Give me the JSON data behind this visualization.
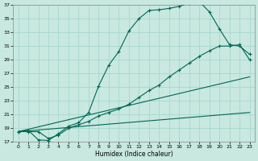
{
  "xlabel": "Humidex (Indice chaleur)",
  "bg_color": "#c8e8e0",
  "line_color": "#006655",
  "grid_color": "#a8d8cc",
  "xlim": [
    -0.5,
    23.5
  ],
  "ylim": [
    17,
    37
  ],
  "yticks": [
    17,
    19,
    21,
    23,
    25,
    27,
    29,
    31,
    33,
    35,
    37
  ],
  "xticks": [
    0,
    1,
    2,
    3,
    4,
    5,
    6,
    7,
    8,
    9,
    10,
    11,
    12,
    13,
    14,
    15,
    16,
    17,
    18,
    19,
    20,
    21,
    22,
    23
  ],
  "curve1_x": [
    0,
    1,
    2,
    3,
    4,
    5,
    6,
    7,
    8,
    9,
    10,
    11,
    12,
    13,
    14,
    15,
    16,
    17,
    18,
    19,
    20,
    21,
    22,
    23
  ],
  "curve1_y": [
    18.5,
    18.7,
    17.3,
    17.2,
    18.2,
    19.3,
    19.8,
    21.3,
    25.2,
    28.2,
    30.2,
    33.2,
    35.0,
    36.2,
    36.3,
    36.5,
    36.8,
    37.3,
    37.5,
    36.0,
    33.5,
    31.2,
    31.0,
    29.8
  ],
  "curve2_x": [
    0,
    1,
    2,
    3,
    4,
    5,
    6,
    7,
    8,
    9,
    10,
    11,
    12,
    13,
    14,
    15,
    16,
    17,
    18,
    19,
    20,
    21,
    22,
    23
  ],
  "curve2_y": [
    18.5,
    18.5,
    18.5,
    17.5,
    18.0,
    19.0,
    19.5,
    20.0,
    20.8,
    21.3,
    21.8,
    22.5,
    23.5,
    24.5,
    25.3,
    26.5,
    27.5,
    28.5,
    29.5,
    30.3,
    31.0,
    31.0,
    31.2,
    29.0
  ],
  "curve3_x": [
    0,
    23
  ],
  "curve3_y": [
    18.5,
    26.5
  ],
  "curve4_x": [
    0,
    23
  ],
  "curve4_y": [
    18.5,
    21.3
  ]
}
